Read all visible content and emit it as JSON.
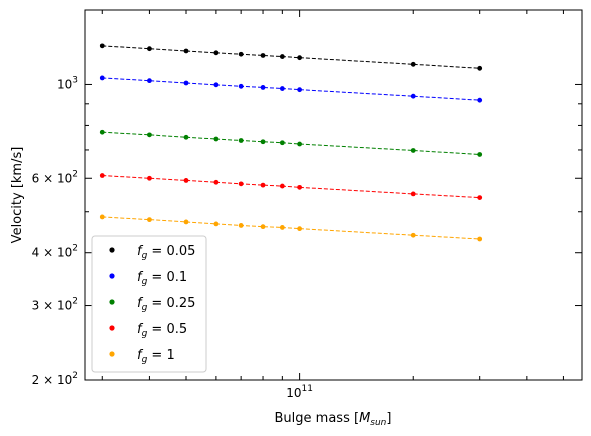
{
  "chart_data": {
    "type": "scatter",
    "xlabel": "Bulge mass [M_sun]",
    "ylabel": "Velocity [km/s]",
    "x_scale": "log",
    "y_scale": "log",
    "xlim": [
      27000000000.0,
      560000000000.0
    ],
    "ylim": [
      200,
      1500
    ],
    "grid": false,
    "legend_position": "lower-left",
    "x_tick_labels": [
      {
        "value": 100000000000.0,
        "base": "10",
        "exp": "11"
      }
    ],
    "y_tick_labels": [
      {
        "value": 1000,
        "mant": "",
        "base": "10",
        "exp": "3"
      },
      {
        "value": 600,
        "mant": "6 × ",
        "base": "10",
        "exp": "2"
      },
      {
        "value": 400,
        "mant": "4 × ",
        "base": "10",
        "exp": "2"
      },
      {
        "value": 300,
        "mant": "3 × ",
        "base": "10",
        "exp": "2"
      },
      {
        "value": 200,
        "mant": "2 × ",
        "base": "10",
        "exp": "2"
      }
    ],
    "x": [
      30000000000.0,
      40000000000.0,
      50000000000.0,
      60000000000.0,
      70000000000.0,
      80000000000.0,
      90000000000.0,
      100000000000.0,
      200000000000.0,
      300000000000.0
    ],
    "series": [
      {
        "name": "f_g = 0.05",
        "color": "#000000",
        "label_main": "f",
        "label_sub": "g",
        "label_value": " = 0.05",
        "values": [
          1234,
          1215,
          1200,
          1188,
          1179,
          1171,
          1164,
          1157,
          1116,
          1092
        ]
      },
      {
        "name": "f_g = 0.1",
        "color": "#0000ff",
        "label_main": "f",
        "label_sub": "g",
        "label_value": " = 0.1",
        "values": [
          1036,
          1021,
          1008,
          998,
          990,
          984,
          978,
          972,
          938,
          918
        ]
      },
      {
        "name": "f_g = 0.25",
        "color": "#008000",
        "label_main": "f",
        "label_sub": "g",
        "label_value": " = 0.25",
        "values": [
          771,
          760,
          750,
          743,
          737,
          732,
          728,
          723,
          698,
          683
        ]
      },
      {
        "name": "f_g = 0.5",
        "color": "#ff0000",
        "label_main": "f",
        "label_sub": "g",
        "label_value": " = 0.5",
        "values": [
          609,
          600,
          593,
          587,
          582,
          578,
          575,
          571,
          551,
          540
        ]
      },
      {
        "name": "f_g = 1",
        "color": "#ffa500",
        "label_main": "f",
        "label_sub": "g",
        "label_value": " = 1",
        "values": [
          486,
          479,
          473,
          468,
          464,
          461,
          459,
          456,
          440,
          431
        ]
      }
    ]
  }
}
